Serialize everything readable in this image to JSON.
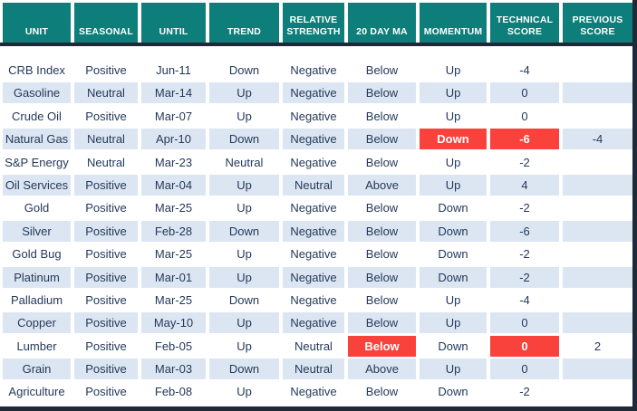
{
  "colors": {
    "header_teal": "#0D7E79",
    "border_navy": "#1E2A38",
    "text_navy": "#24395B",
    "band_blue": "#DCE6F2",
    "highlight_red": "#F9423B",
    "row_white": "#FFFFFF"
  },
  "table": {
    "columns": [
      {
        "key": "unit",
        "label": "UNIT"
      },
      {
        "key": "seasonal",
        "label": "SEASONAL"
      },
      {
        "key": "until",
        "label": "UNTIL"
      },
      {
        "key": "trend",
        "label": "TREND"
      },
      {
        "key": "relative_strength",
        "label": "RELATIVE STRENGTH"
      },
      {
        "key": "ma20",
        "label": "20 DAY MA"
      },
      {
        "key": "momentum",
        "label": "MOMENTUM"
      },
      {
        "key": "technical_score",
        "label": "TECHNICAL SCORE"
      },
      {
        "key": "previous_score",
        "label": "PREVIOUS SCORE"
      }
    ],
    "rows": [
      {
        "unit": "CRB Index",
        "seasonal": "Positive",
        "until": "Jun-11",
        "trend": "Down",
        "relative_strength": "Negative",
        "ma20": "Below",
        "momentum": "Up",
        "technical_score": "-4",
        "previous_score": "",
        "red_cells": []
      },
      {
        "unit": "Gasoline",
        "seasonal": "Neutral",
        "until": "Mar-14",
        "trend": "Up",
        "relative_strength": "Negative",
        "ma20": "Below",
        "momentum": "Up",
        "technical_score": "0",
        "previous_score": "",
        "red_cells": []
      },
      {
        "unit": "Crude Oil",
        "seasonal": "Positive",
        "until": "Mar-07",
        "trend": "Up",
        "relative_strength": "Negative",
        "ma20": "Below",
        "momentum": "Up",
        "technical_score": "0",
        "previous_score": "",
        "red_cells": []
      },
      {
        "unit": "Natural Gas",
        "seasonal": "Neutral",
        "until": "Apr-10",
        "trend": "Down",
        "relative_strength": "Negative",
        "ma20": "Below",
        "momentum": "Down",
        "technical_score": "-6",
        "previous_score": "-4",
        "red_cells": [
          "momentum",
          "technical_score"
        ]
      },
      {
        "unit": "S&P Energy",
        "seasonal": "Neutral",
        "until": "Mar-23",
        "trend": "Neutral",
        "relative_strength": "Negative",
        "ma20": "Below",
        "momentum": "Up",
        "technical_score": "-2",
        "previous_score": "",
        "red_cells": []
      },
      {
        "unit": "Oil Services",
        "seasonal": "Positive",
        "until": "Mar-04",
        "trend": "Up",
        "relative_strength": "Neutral",
        "ma20": "Above",
        "momentum": "Up",
        "technical_score": "4",
        "previous_score": "",
        "red_cells": []
      },
      {
        "unit": "Gold",
        "seasonal": "Positive",
        "until": "Mar-25",
        "trend": "Up",
        "relative_strength": "Negative",
        "ma20": "Below",
        "momentum": "Down",
        "technical_score": "-2",
        "previous_score": "",
        "red_cells": []
      },
      {
        "unit": "Silver",
        "seasonal": "Positive",
        "until": "Feb-28",
        "trend": "Down",
        "relative_strength": "Negative",
        "ma20": "Below",
        "momentum": "Down",
        "technical_score": "-6",
        "previous_score": "",
        "red_cells": []
      },
      {
        "unit": "Gold Bug",
        "seasonal": "Positive",
        "until": "Mar-25",
        "trend": "Up",
        "relative_strength": "Negative",
        "ma20": "Below",
        "momentum": "Down",
        "technical_score": "-2",
        "previous_score": "",
        "red_cells": []
      },
      {
        "unit": "Platinum",
        "seasonal": "Positive",
        "until": "Mar-01",
        "trend": "Up",
        "relative_strength": "Negative",
        "ma20": "Below",
        "momentum": "Down",
        "technical_score": "-2",
        "previous_score": "",
        "red_cells": []
      },
      {
        "unit": "Palladium",
        "seasonal": "Positive",
        "until": "Mar-25",
        "trend": "Down",
        "relative_strength": "Negative",
        "ma20": "Below",
        "momentum": "Up",
        "technical_score": "-4",
        "previous_score": "",
        "red_cells": []
      },
      {
        "unit": "Copper",
        "seasonal": "Positive",
        "until": "May-10",
        "trend": "Up",
        "relative_strength": "Negative",
        "ma20": "Below",
        "momentum": "Up",
        "technical_score": "0",
        "previous_score": "",
        "red_cells": []
      },
      {
        "unit": "Lumber",
        "seasonal": "Positive",
        "until": "Feb-05",
        "trend": "Up",
        "relative_strength": "Neutral",
        "ma20": "Below",
        "momentum": "Down",
        "technical_score": "0",
        "previous_score": "2",
        "red_cells": [
          "ma20",
          "technical_score"
        ]
      },
      {
        "unit": "Grain",
        "seasonal": "Positive",
        "until": "Mar-03",
        "trend": "Down",
        "relative_strength": "Neutral",
        "ma20": "Above",
        "momentum": "Up",
        "technical_score": "0",
        "previous_score": "",
        "red_cells": []
      },
      {
        "unit": "Agriculture",
        "seasonal": "Positive",
        "until": "Feb-08",
        "trend": "Up",
        "relative_strength": "Negative",
        "ma20": "Below",
        "momentum": "Down",
        "technical_score": "-2",
        "previous_score": "",
        "red_cells": []
      }
    ]
  }
}
